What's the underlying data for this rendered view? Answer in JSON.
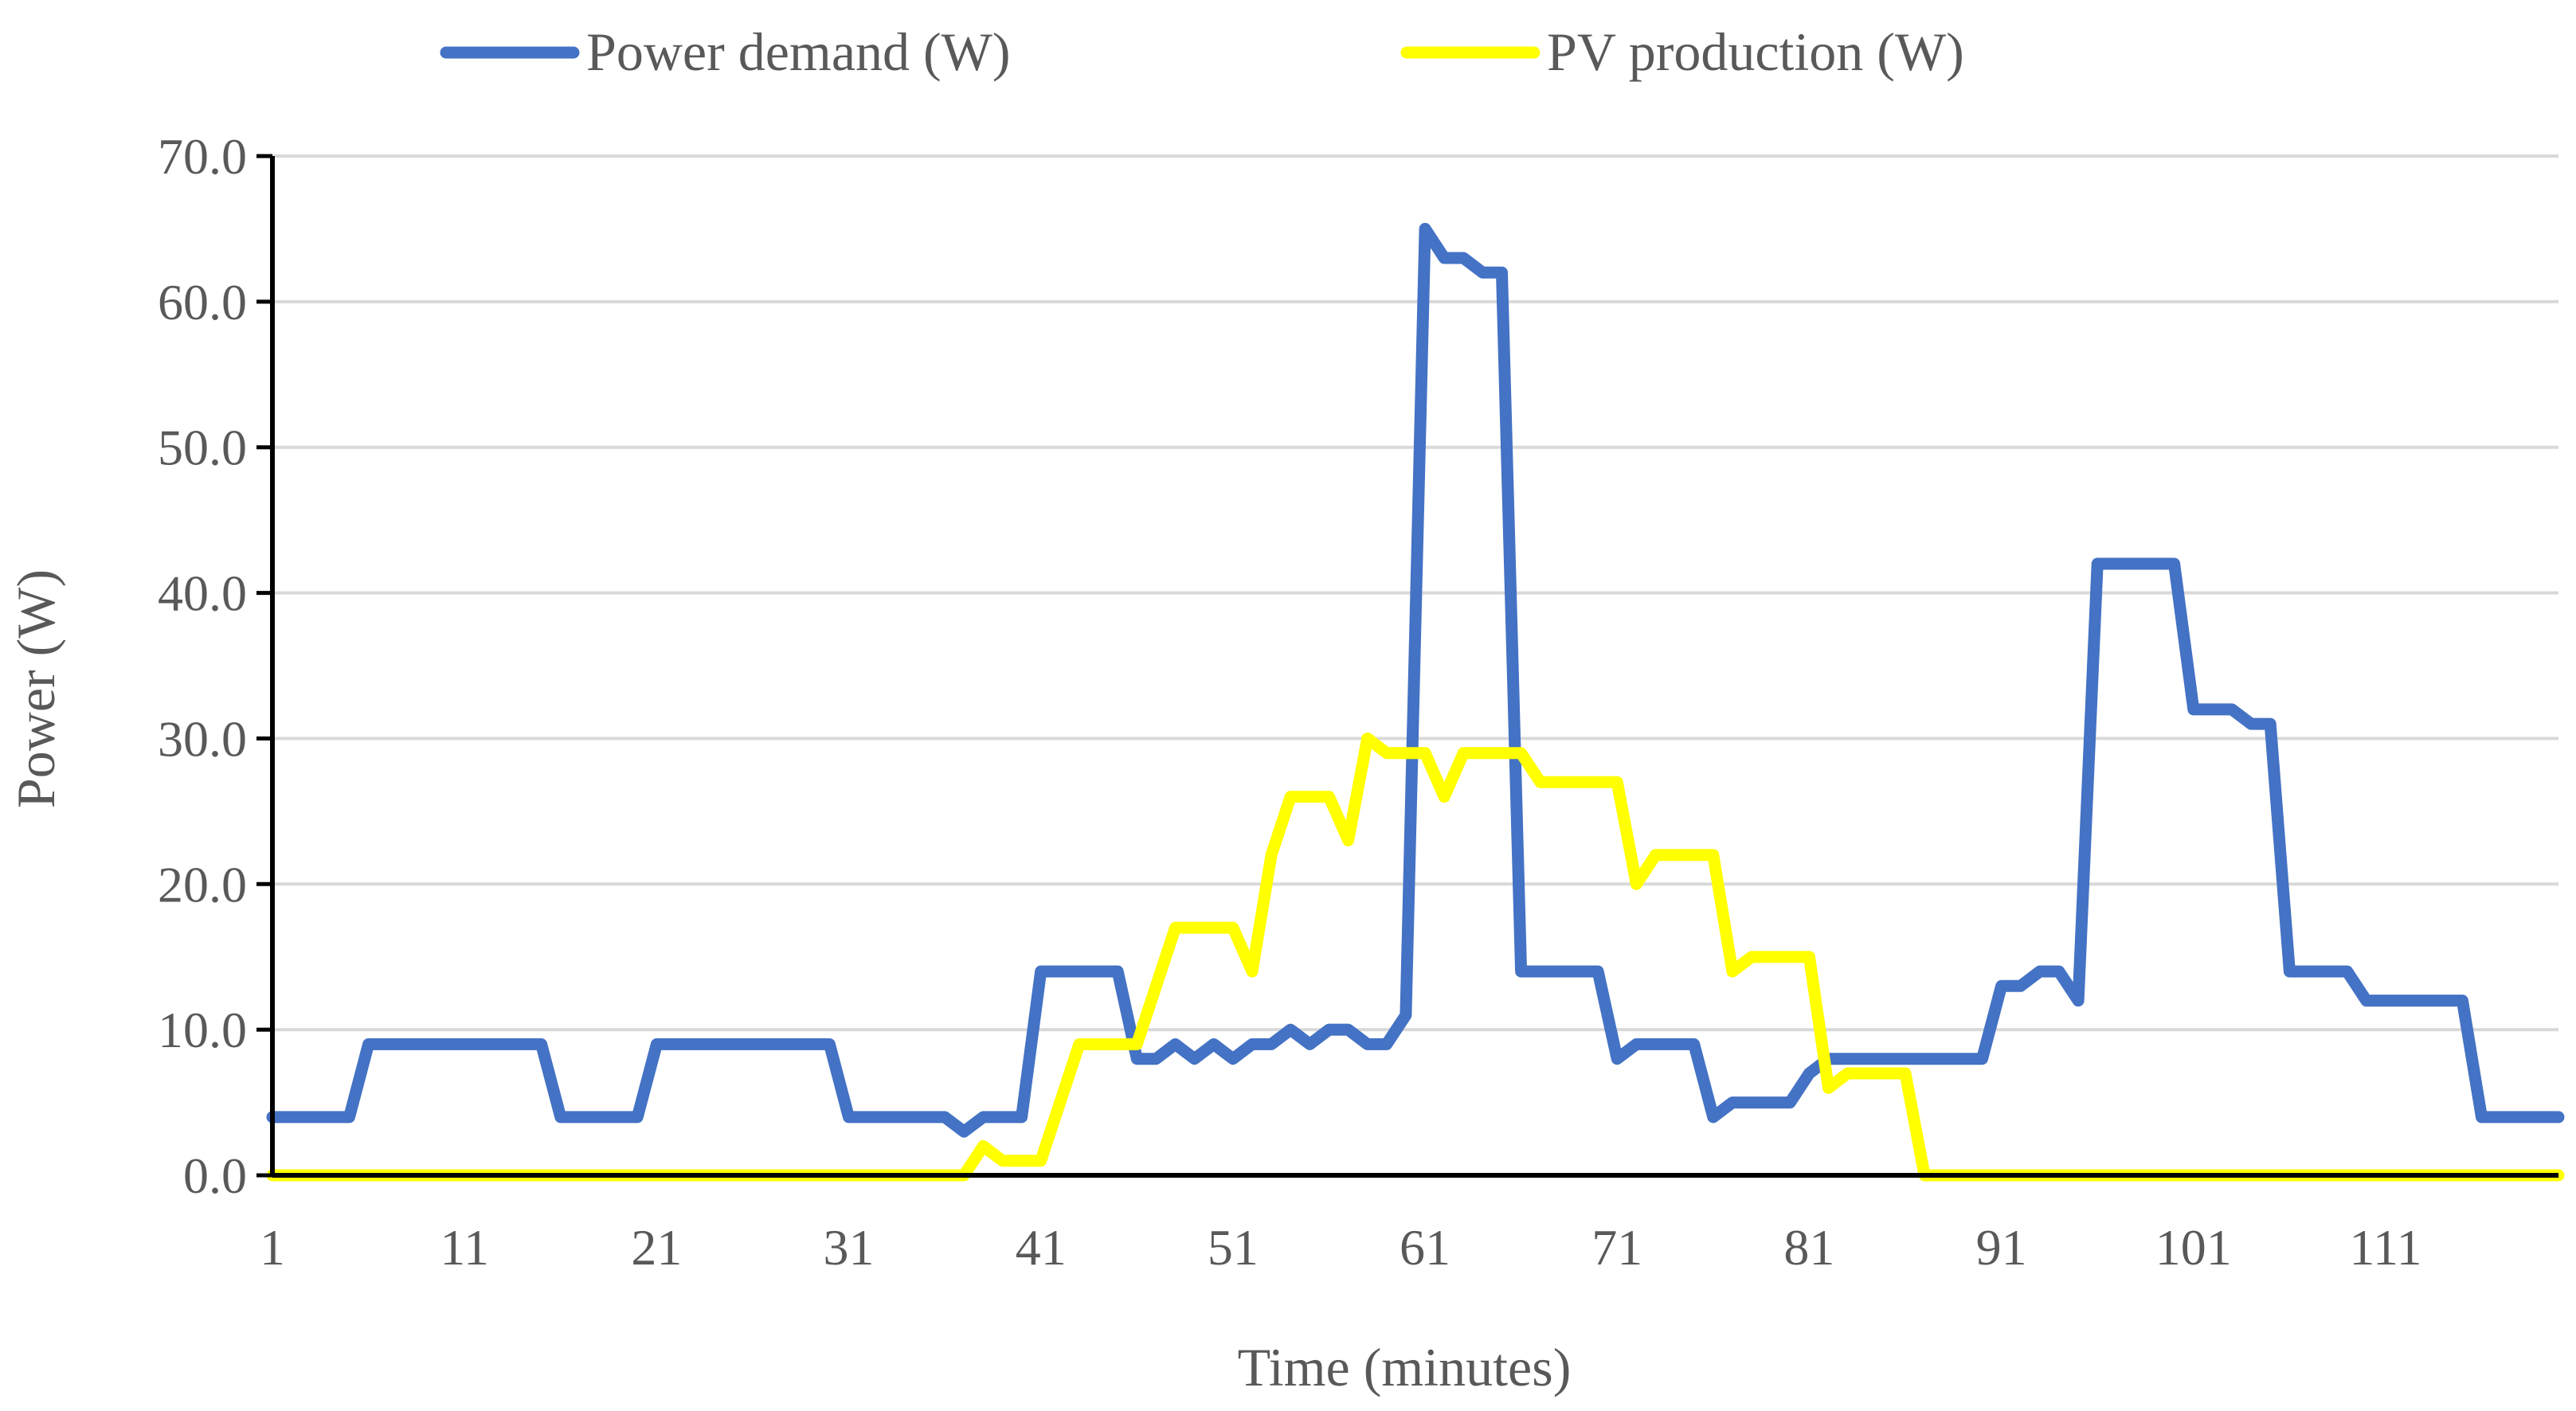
{
  "chart_data": {
    "type": "line",
    "title": "",
    "xlabel": "Time (minutes)",
    "ylabel": "Power (W)",
    "ylim": [
      0,
      70
    ],
    "xlim": [
      1,
      120
    ],
    "y_ticks": [
      "0.0",
      "10.0",
      "20.0",
      "30.0",
      "40.0",
      "50.0",
      "60.0",
      "70.0"
    ],
    "x_ticks": [
      "1",
      "11",
      "21",
      "31",
      "41",
      "51",
      "61",
      "71",
      "81",
      "91",
      "101",
      "111"
    ],
    "grid": true,
    "legend_position": "top",
    "x": [
      1,
      2,
      3,
      4,
      5,
      6,
      7,
      8,
      9,
      10,
      11,
      12,
      13,
      14,
      15,
      16,
      17,
      18,
      19,
      20,
      21,
      22,
      23,
      24,
      25,
      26,
      27,
      28,
      29,
      30,
      31,
      32,
      33,
      34,
      35,
      36,
      37,
      38,
      39,
      40,
      41,
      42,
      43,
      44,
      45,
      46,
      47,
      48,
      49,
      50,
      51,
      52,
      53,
      54,
      55,
      56,
      57,
      58,
      59,
      60,
      61,
      62,
      63,
      64,
      65,
      66,
      67,
      68,
      69,
      70,
      71,
      72,
      73,
      74,
      75,
      76,
      77,
      78,
      79,
      80,
      81,
      82,
      83,
      84,
      85,
      86,
      87,
      88,
      89,
      90,
      91,
      92,
      93,
      94,
      95,
      96,
      97,
      98,
      99,
      100,
      101,
      102,
      103,
      104,
      105,
      106,
      107,
      108,
      109,
      110,
      111,
      112,
      113,
      114,
      115,
      116,
      117,
      118,
      119,
      120
    ],
    "series": [
      {
        "name": "Power demand (W)",
        "color": "#4472C4",
        "values": [
          4,
          4,
          4,
          4,
          4,
          9,
          9,
          9,
          9,
          9,
          9,
          9,
          9,
          9,
          9,
          4,
          4,
          4,
          4,
          4,
          9,
          9,
          9,
          9,
          9,
          9,
          9,
          9,
          9,
          9,
          4,
          4,
          4,
          4,
          4,
          4,
          3,
          4,
          4,
          4,
          14,
          14,
          14,
          14,
          14,
          8,
          8,
          9,
          8,
          9,
          8,
          9,
          9,
          10,
          9,
          10,
          10,
          9,
          9,
          11,
          65,
          63,
          63,
          62,
          62,
          14,
          14,
          14,
          14,
          14,
          8,
          9,
          9,
          9,
          9,
          4,
          5,
          5,
          5,
          5,
          7,
          8,
          8,
          8,
          8,
          8,
          8,
          8,
          8,
          8,
          13,
          13,
          14,
          14,
          12,
          42,
          42,
          42,
          42,
          42,
          32,
          32,
          32,
          31,
          31,
          14,
          14,
          14,
          14,
          12,
          12,
          12,
          12,
          12,
          12,
          4,
          4,
          4,
          4,
          4
        ]
      },
      {
        "name": "PV production (W)",
        "color": "#FFFF00",
        "values": [
          0,
          0,
          0,
          0,
          0,
          0,
          0,
          0,
          0,
          0,
          0,
          0,
          0,
          0,
          0,
          0,
          0,
          0,
          0,
          0,
          0,
          0,
          0,
          0,
          0,
          0,
          0,
          0,
          0,
          0,
          0,
          0,
          0,
          0,
          0,
          0,
          0,
          2,
          1,
          1,
          1,
          5,
          9,
          9,
          9,
          9,
          13,
          17,
          17,
          17,
          17,
          14,
          22,
          26,
          26,
          26,
          23,
          30,
          29,
          29,
          29,
          26,
          29,
          29,
          29,
          29,
          27,
          27,
          27,
          27,
          27,
          20,
          22,
          22,
          22,
          22,
          14,
          15,
          15,
          15,
          15,
          6,
          7,
          7,
          7,
          7,
          0,
          0,
          0,
          0,
          0,
          0,
          0,
          0,
          0,
          0,
          0,
          0,
          0,
          0,
          0,
          0,
          0,
          0,
          0,
          0,
          0,
          0,
          0,
          0,
          0,
          0,
          0,
          0,
          0,
          0,
          0,
          0,
          0,
          0
        ]
      }
    ]
  }
}
